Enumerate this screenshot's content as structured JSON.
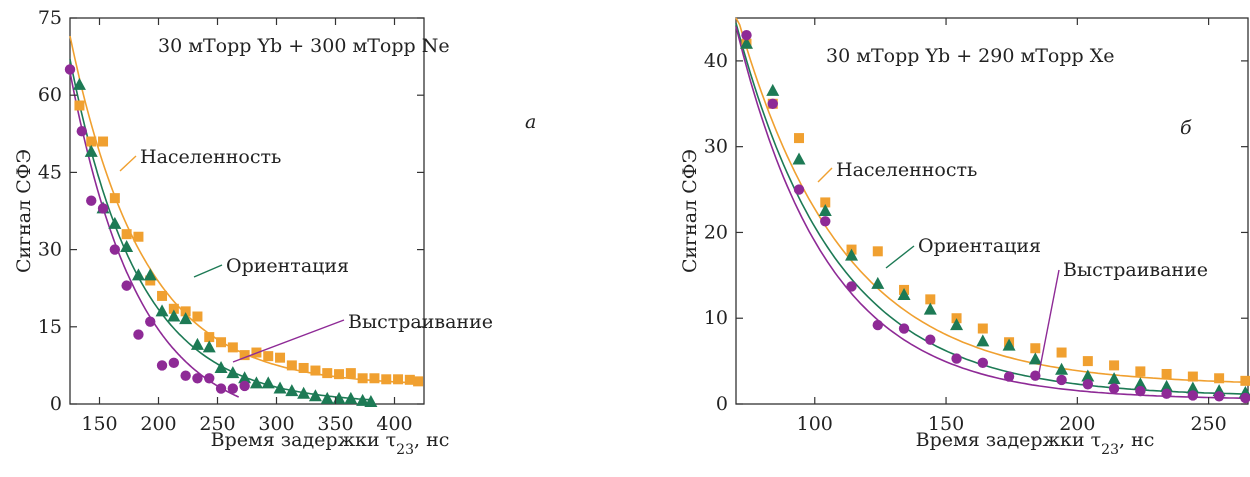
{
  "colors": {
    "population": "#f0a030",
    "orientation": "#1d7a55",
    "alignment": "#8e2a96",
    "axis": "#333333"
  },
  "chart_data": [
    {
      "type": "scatter",
      "panel_label": "а",
      "title": "30 мТорр Yb + 300 мТорр Ne",
      "xlabel": "Время задержки τ23, нс",
      "ylabel": "Сигнал СФЭ",
      "xlim": [
        125,
        425
      ],
      "ylim": [
        0,
        75
      ],
      "xticks": [
        150,
        200,
        250,
        300,
        350,
        400
      ],
      "yticks": [
        0,
        15,
        30,
        45,
        60,
        75
      ],
      "grid": false,
      "series": [
        {
          "name": "Населенность",
          "marker": "square",
          "color_key": "population",
          "points": [
            [
              133,
              58
            ],
            [
              143,
              51
            ],
            [
              153,
              51
            ],
            [
              163,
              40
            ],
            [
              173,
              33
            ],
            [
              183,
              32.5
            ],
            [
              193,
              24
            ],
            [
              203,
              21
            ],
            [
              213,
              18.5
            ],
            [
              223,
              18
            ],
            [
              233,
              17
            ],
            [
              243,
              13
            ],
            [
              253,
              12
            ],
            [
              263,
              11
            ],
            [
              273,
              9.5
            ],
            [
              283,
              10
            ],
            [
              293,
              9.3
            ],
            [
              303,
              9
            ],
            [
              313,
              7.5
            ],
            [
              323,
              7
            ],
            [
              333,
              6.5
            ],
            [
              343,
              6
            ],
            [
              353,
              5.8
            ],
            [
              363,
              6
            ],
            [
              373,
              5
            ],
            [
              383,
              5
            ],
            [
              393,
              4.8
            ],
            [
              403,
              4.8
            ],
            [
              413,
              4.7
            ],
            [
              420,
              4.4
            ]
          ],
          "fit": {
            "model": "exp",
            "a": 68,
            "x0": 125,
            "tau": 62,
            "c": 3.5,
            "xmin": 125,
            "xmax": 420
          }
        },
        {
          "name": "Ориентация",
          "marker": "triangle",
          "color_key": "orientation",
          "points": [
            [
              133,
              62
            ],
            [
              143,
              49
            ],
            [
              153,
              38
            ],
            [
              163,
              35
            ],
            [
              173,
              30.5
            ],
            [
              183,
              25
            ],
            [
              193,
              25
            ],
            [
              203,
              18
            ],
            [
              213,
              17
            ],
            [
              223,
              16.5
            ],
            [
              233,
              11.5
            ],
            [
              243,
              11
            ],
            [
              253,
              7
            ],
            [
              263,
              6
            ],
            [
              273,
              5
            ],
            [
              283,
              4
            ],
            [
              293,
              4
            ],
            [
              303,
              3
            ],
            [
              313,
              2.5
            ],
            [
              323,
              2
            ],
            [
              333,
              1.5
            ],
            [
              343,
              1
            ],
            [
              353,
              1
            ],
            [
              363,
              1
            ],
            [
              373,
              0.6
            ],
            [
              380,
              0.4
            ]
          ],
          "fit": {
            "model": "exp",
            "a": 67,
            "x0": 125,
            "tau": 58,
            "c": 0,
            "xmin": 125,
            "xmax": 380
          }
        },
        {
          "name": "Выстраивание",
          "marker": "circle",
          "color_key": "alignment",
          "points": [
            [
              125,
              65
            ],
            [
              135,
              53
            ],
            [
              143,
              39.5
            ],
            [
              153,
              38
            ],
            [
              163,
              30
            ],
            [
              173,
              23
            ],
            [
              183,
              13.5
            ],
            [
              193,
              16
            ],
            [
              203,
              7.5
            ],
            [
              213,
              8
            ],
            [
              223,
              5.5
            ],
            [
              233,
              5
            ],
            [
              243,
              5
            ],
            [
              253,
              3
            ],
            [
              263,
              3
            ],
            [
              273,
              3.5
            ]
          ],
          "fit": {
            "model": "exp",
            "a": 69,
            "x0": 125,
            "tau": 58,
            "c": -4.5,
            "xmin": 125,
            "xmax": 268
          }
        }
      ],
      "annotations": [
        {
          "text": "Населенность",
          "series": 0,
          "label_x": 140,
          "label_y": 161,
          "target_x": 165,
          "target_y": 36.5
        },
        {
          "text": "Ориентация",
          "series": 1,
          "label_x": 224,
          "label_y": 268,
          "target_x": 189,
          "target_y": 25
        },
        {
          "text": "Выстраивание",
          "series": 2,
          "label_x": 347,
          "label_y": 325,
          "target_x": 217,
          "target_y": 6.5
        }
      ]
    },
    {
      "type": "scatter",
      "panel_label": "б",
      "title": "30 мТорр Yb + 290 мТорр Xe",
      "xlabel": "Время задержки τ23, нс",
      "ylabel": "Сигнал СФЭ",
      "xlim": [
        70,
        265
      ],
      "ylim": [
        0,
        45
      ],
      "xticks": [
        100,
        150,
        200,
        250
      ],
      "yticks": [
        0,
        10,
        20,
        30,
        40
      ],
      "grid": false,
      "series": [
        {
          "name": "Населенность",
          "marker": "square",
          "color_key": "population",
          "points": [
            [
              74,
              42
            ],
            [
              84,
              35
            ],
            [
              94,
              31
            ],
            [
              104,
              23.5
            ],
            [
              114,
              18
            ],
            [
              124,
              17.8
            ],
            [
              134,
              13.3
            ],
            [
              144,
              12.2
            ],
            [
              154,
              10
            ],
            [
              164,
              8.8
            ],
            [
              174,
              7.2
            ],
            [
              184,
              6.5
            ],
            [
              194,
              6
            ],
            [
              204,
              5
            ],
            [
              214,
              4.5
            ],
            [
              224,
              3.8
            ],
            [
              234,
              3.5
            ],
            [
              244,
              3.2
            ],
            [
              254,
              3
            ],
            [
              264,
              2.7
            ]
          ],
          "fit": {
            "model": "exp",
            "a": 43.5,
            "x0": 70,
            "tau": 40,
            "c": 2.2,
            "xmin": 70,
            "xmax": 265
          }
        },
        {
          "name": "Ориентация",
          "marker": "triangle",
          "color_key": "orientation",
          "points": [
            [
              74,
              42
            ],
            [
              84,
              36.5
            ],
            [
              94,
              28.5
            ],
            [
              104,
              22.5
            ],
            [
              114,
              17.3
            ],
            [
              124,
              14
            ],
            [
              134,
              12.7
            ],
            [
              144,
              11
            ],
            [
              154,
              9.2
            ],
            [
              164,
              7.3
            ],
            [
              174,
              6.8
            ],
            [
              184,
              5.2
            ],
            [
              194,
              4
            ],
            [
              204,
              3.2
            ],
            [
              214,
              2.9
            ],
            [
              224,
              2.3
            ],
            [
              234,
              2
            ],
            [
              244,
              1.8
            ],
            [
              254,
              1.5
            ],
            [
              264,
              1.3
            ]
          ],
          "fit": {
            "model": "exp",
            "a": 43.5,
            "x0": 70,
            "tau": 38,
            "c": 0.9,
            "xmin": 70,
            "xmax": 265
          }
        },
        {
          "name": "Выстраивание",
          "marker": "circle",
          "color_key": "alignment",
          "points": [
            [
              74,
              43
            ],
            [
              84,
              35
            ],
            [
              94,
              25
            ],
            [
              104,
              21.3
            ],
            [
              114,
              13.7
            ],
            [
              124,
              9.2
            ],
            [
              134,
              8.8
            ],
            [
              144,
              7.5
            ],
            [
              154,
              5.3
            ],
            [
              164,
              4.8
            ],
            [
              174,
              3.2
            ],
            [
              184,
              3.3
            ],
            [
              194,
              2.8
            ],
            [
              204,
              2.3
            ],
            [
              214,
              1.8
            ],
            [
              224,
              1.5
            ],
            [
              234,
              1.2
            ],
            [
              244,
              1
            ],
            [
              254,
              0.9
            ],
            [
              264,
              0.7
            ]
          ],
          "fit": {
            "model": "exp",
            "a": 43.5,
            "x0": 70,
            "tau": 35,
            "c": 0.5,
            "xmin": 70,
            "xmax": 265
          }
        }
      ],
      "annotations": [
        {
          "text": "Населенность",
          "series": 0,
          "label_x": 103,
          "label_y": 170,
          "target_x": 106,
          "target_y": 25
        },
        {
          "text": "Ориентация",
          "series": 1,
          "label_x": 134,
          "label_y": 248,
          "target_x": 124,
          "target_y": 14
        },
        {
          "text": "Выстраивание",
          "series": 2,
          "label_x": 174,
          "label_y": 272,
          "target_x": 174,
          "target_y": 3
        }
      ]
    }
  ]
}
